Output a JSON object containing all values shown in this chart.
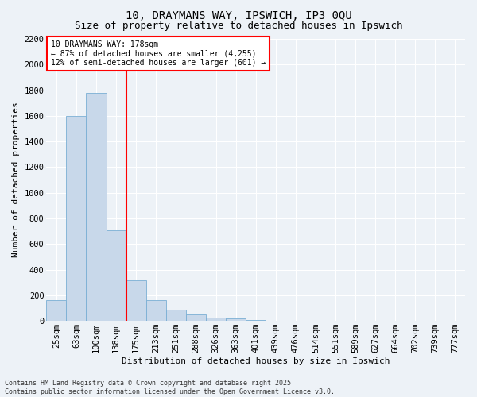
{
  "title1": "10, DRAYMANS WAY, IPSWICH, IP3 0QU",
  "title2": "Size of property relative to detached houses in Ipswich",
  "xlabel": "Distribution of detached houses by size in Ipswich",
  "ylabel": "Number of detached properties",
  "categories": [
    "25sqm",
    "63sqm",
    "100sqm",
    "138sqm",
    "175sqm",
    "213sqm",
    "251sqm",
    "288sqm",
    "326sqm",
    "363sqm",
    "401sqm",
    "439sqm",
    "476sqm",
    "514sqm",
    "551sqm",
    "589sqm",
    "627sqm",
    "664sqm",
    "702sqm",
    "739sqm",
    "777sqm"
  ],
  "values": [
    160,
    1600,
    1780,
    710,
    320,
    160,
    90,
    50,
    25,
    20,
    10,
    0,
    0,
    0,
    0,
    0,
    0,
    0,
    0,
    0,
    0
  ],
  "bar_color": "#c8d8ea",
  "bar_edge_color": "#7aafd4",
  "vline_color": "red",
  "annotation_text": "10 DRAYMANS WAY: 178sqm\n← 87% of detached houses are smaller (4,255)\n12% of semi-detached houses are larger (601) →",
  "annotation_box_color": "white",
  "annotation_box_edge": "red",
  "ylim_max": 2200,
  "yticks": [
    0,
    200,
    400,
    600,
    800,
    1000,
    1200,
    1400,
    1600,
    1800,
    2000,
    2200
  ],
  "footer1": "Contains HM Land Registry data © Crown copyright and database right 2025.",
  "footer2": "Contains public sector information licensed under the Open Government Licence v3.0.",
  "bg_color": "#edf2f7",
  "grid_color": "#ffffff",
  "title_fontsize": 10,
  "subtitle_fontsize": 9,
  "axis_label_fontsize": 8,
  "tick_fontsize": 7.5,
  "annotation_fontsize": 7,
  "footer_fontsize": 6
}
